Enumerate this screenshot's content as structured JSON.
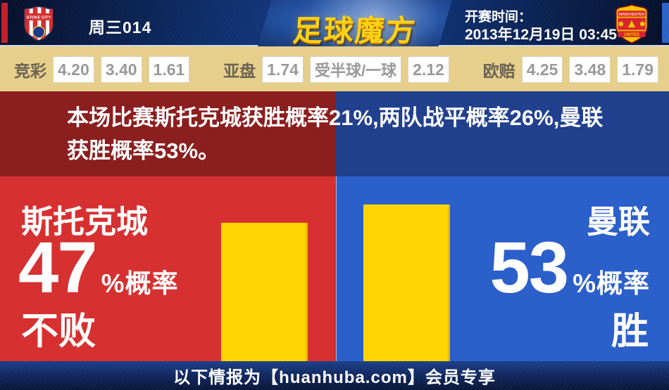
{
  "header": {
    "match_code": "周三014",
    "logo_text": "足球魔方",
    "kickoff_label": "开赛时间：",
    "kickoff_time": "2013年12月19日 03:45",
    "home_badge_text": "STOKE CITY",
    "away_badge_top": "MANCHESTER",
    "away_badge_bottom": "UNITED"
  },
  "odds": {
    "jingcai_label": "竞彩",
    "jingcai": [
      "4.20",
      "3.40",
      "1.61"
    ],
    "yapan_label": "亚盘",
    "yapan_home": "1.74",
    "yapan_handicap": "受半球/一球",
    "yapan_away": "2.12",
    "oupei_label": "欧赔",
    "oupei": [
      "4.25",
      "3.48",
      "1.79"
    ]
  },
  "summary": {
    "line1": "本场比赛斯托克城获胜概率21%,两队战平概率26%,曼联",
    "line2": "获胜概率53%。"
  },
  "prediction": {
    "home": {
      "name": "斯托克城",
      "percent": "47",
      "suffix": "%概率",
      "outcome": "不败",
      "value": 47
    },
    "away": {
      "name": "曼联",
      "percent": "53",
      "suffix": "%概率",
      "outcome": "胜",
      "value": 53
    }
  },
  "chart_data": {
    "type": "bar",
    "categories": [
      "斯托克城 不败",
      "曼联 胜"
    ],
    "values": [
      47,
      53
    ],
    "unit": "%概率",
    "bar_color": "#ffd400"
  },
  "footer": {
    "text": "以下情报为【huanhuba.com】会员专享"
  },
  "colors": {
    "home_dark_red": "#8b1e1e",
    "home_red": "#d63030",
    "away_dark_blue": "#21408e",
    "away_blue": "#2b5fc9",
    "bar_yellow": "#ffd400",
    "odds_bg": "#e6cf8b"
  }
}
